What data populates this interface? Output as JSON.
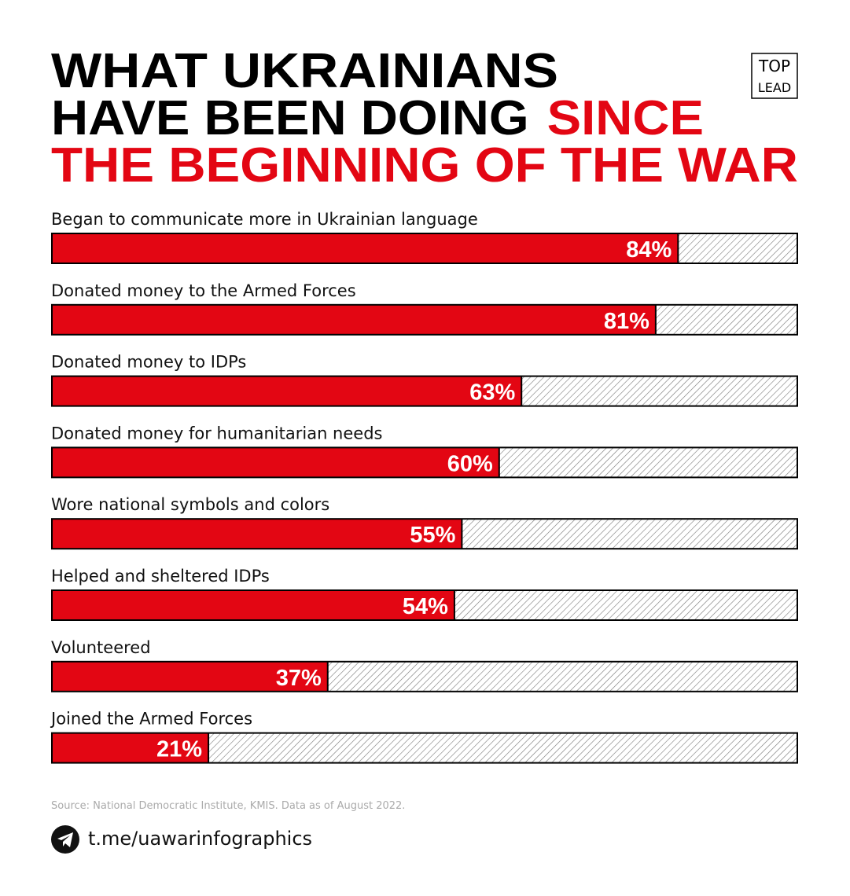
{
  "chart_data": {
    "type": "bar",
    "orientation": "horizontal",
    "title": {
      "black": [
        "WHAT UKRAINIANS",
        "HAVE BEEN DOING"
      ],
      "red": [
        "SINCE",
        "THE BEGINNING OF THE WAR"
      ]
    },
    "logo": [
      "TOP",
      "LEAD"
    ],
    "categories": [
      "Began to communicate more in Ukrainian language",
      "Donated money to the Armed Forces",
      "Donated money to IDPs",
      "Donated money for humanitarian needs",
      "Wore national symbols and colors",
      "Helped and sheltered IDPs",
      "Volunteered",
      "Joined the Armed Forces"
    ],
    "values": [
      84,
      81,
      63,
      60,
      55,
      54,
      37,
      21
    ],
    "value_labels": [
      "84%",
      "81%",
      "63%",
      "60%",
      "55%",
      "54%",
      "37%",
      "21%"
    ],
    "color": "#e30613",
    "xlim": [
      0,
      100
    ],
    "source": "Source: National Democratic Institute, KMIS. Data as of August 2022.",
    "link": "t.me/uawarinfographics"
  }
}
